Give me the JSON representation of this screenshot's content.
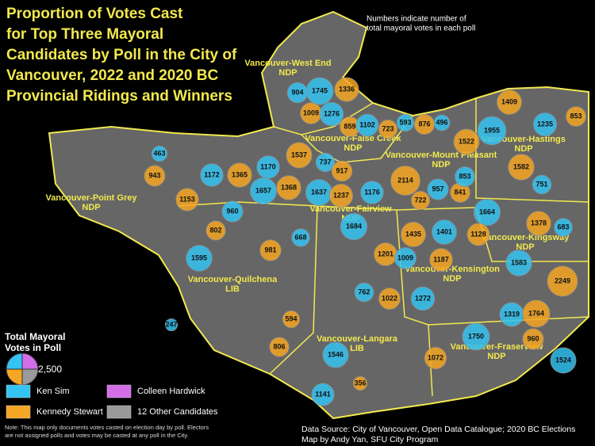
{
  "title": [
    "Proportion of Votes Cast",
    "for Top Three Mayoral",
    "Candidates by Poll in the City of",
    "Vancouver, 2022 and 2020 BC",
    "Provincial Ridings and Winners"
  ],
  "top_note": [
    "Numbers indicate number of",
    "total mayoral votes in each poll"
  ],
  "ridings": [
    {
      "name": "Vancouver-West End",
      "winner": "NDP"
    },
    {
      "name": "Vancouver-False Creek",
      "winner": "NDP"
    },
    {
      "name": "Vancouver-Mount Pleasant",
      "winner": "NDP"
    },
    {
      "name": "Vancouver-Hastings",
      "winner": "NDP"
    },
    {
      "name": "Vancouver-Point Grey",
      "winner": "NDP"
    },
    {
      "name": "Vancouver-Fairview",
      "winner": "NDP"
    },
    {
      "name": "Vancouver-Kingsway",
      "winner": "NDP"
    },
    {
      "name": "Vancouver-Kensington",
      "winner": "NDP"
    },
    {
      "name": "Vancouver-Quilchena",
      "winner": "LIB"
    },
    {
      "name": "Vancouver-Langara",
      "winner": "LIB"
    },
    {
      "name": "Vancouver-Fraserview",
      "winner": "NDP"
    }
  ],
  "polls": [
    1745,
    1336,
    904,
    1009,
    1276,
    859,
    1102,
    723,
    593,
    876,
    496,
    1409,
    1235,
    853,
    1955,
    1522,
    463,
    943,
    1172,
    1365,
    1170,
    1537,
    737,
    917,
    1657,
    1368,
    1637,
    1237,
    1176,
    2114,
    957,
    841,
    853,
    1582,
    751,
    1153,
    960,
    722,
    1664,
    1378,
    683,
    802,
    1684,
    1435,
    1401,
    1128,
    668,
    981,
    1595,
    1201,
    1009,
    1187,
    1583,
    2249,
    762,
    1022,
    1272,
    594,
    1319,
    1764,
    247,
    806,
    1546,
    1072,
    1750,
    960,
    1524,
    356,
    1141
  ],
  "legend": {
    "title": [
      "Total Mayoral",
      "Votes in Poll"
    ],
    "size": {
      "value": 2500,
      "label": "2,500"
    },
    "candidates": [
      {
        "name": "Ken Sim",
        "color": "#35c3f2"
      },
      {
        "name": "Colleen Hardwick",
        "color": "#d46ee8"
      },
      {
        "name": "Kennedy Stewart",
        "color": "#f5a623"
      },
      {
        "name": "12 Other Candidates",
        "color": "#9a9a9a"
      }
    ]
  },
  "note": [
    "Note: This map only documents votes casted on election day by poll. Electors",
    "are not assigned polls and votes may be casted at any poll in the City."
  ],
  "source": [
    "Data Source: City of Vancouver, Open Data Catalogue; 2020 BC Elections",
    "Map by Andy Yan, SFU City Program"
  ]
}
